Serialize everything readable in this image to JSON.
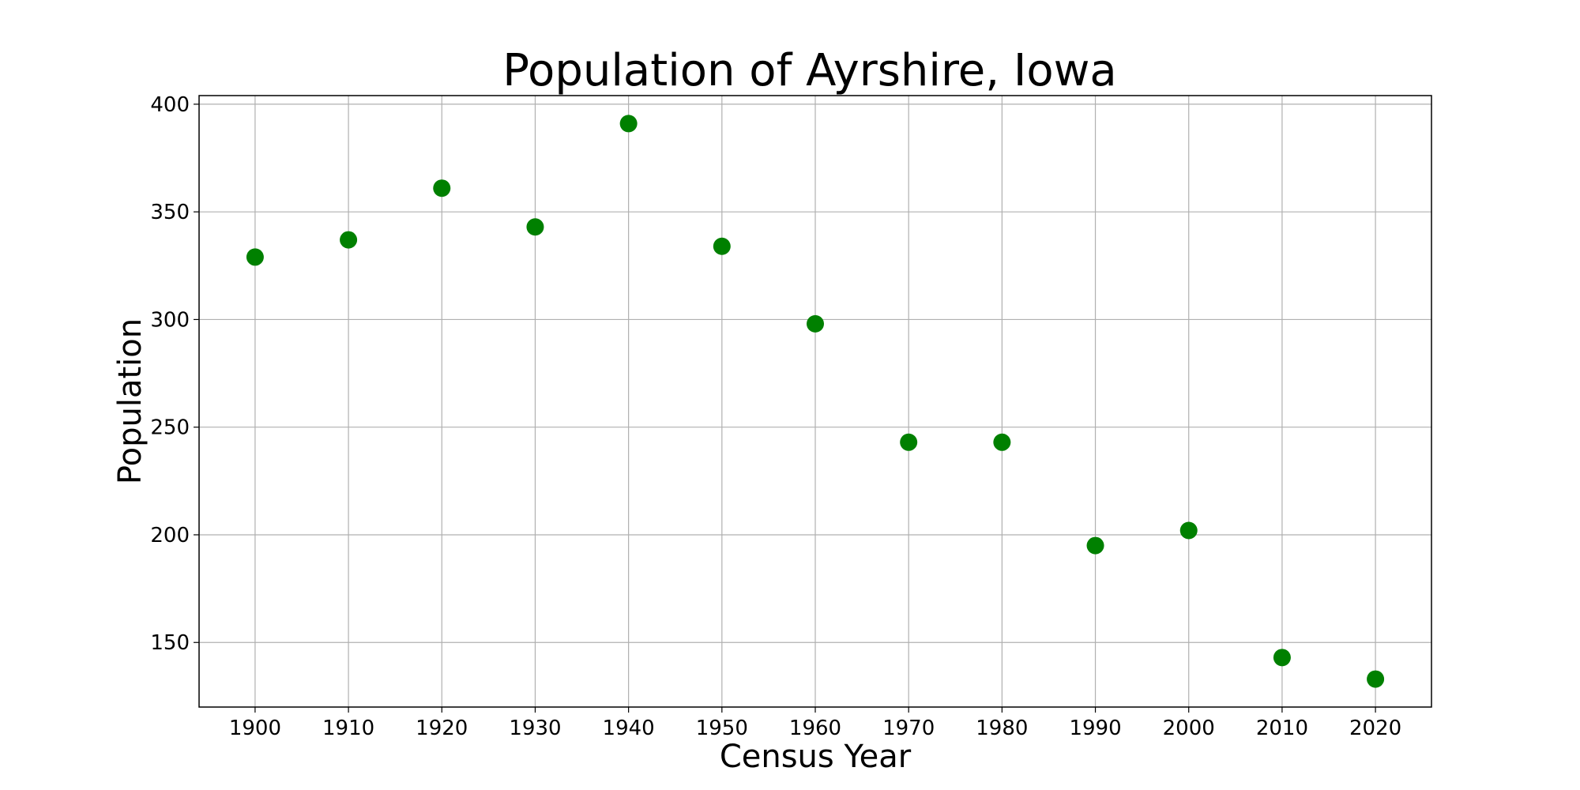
{
  "chart_data": {
    "type": "scatter",
    "title": "Population of Ayrshire, Iowa",
    "xlabel": "Census Year",
    "ylabel": "Population",
    "x": [
      1900,
      1910,
      1920,
      1930,
      1940,
      1950,
      1960,
      1970,
      1980,
      1990,
      2000,
      2010,
      2020
    ],
    "series": [
      {
        "values": [
          329,
          337,
          361,
          343,
          391,
          334,
          298,
          243,
          243,
          195,
          202,
          143,
          133
        ],
        "color": "#008000",
        "marker": "circle"
      }
    ],
    "xlim": [
      1894,
      2026
    ],
    "ylim": [
      120,
      404
    ],
    "xticks": [
      1900,
      1910,
      1920,
      1930,
      1940,
      1950,
      1960,
      1970,
      1980,
      1990,
      2000,
      2010,
      2020
    ],
    "yticks": [
      150,
      200,
      250,
      300,
      350,
      400
    ],
    "grid": true,
    "legend": "none"
  }
}
